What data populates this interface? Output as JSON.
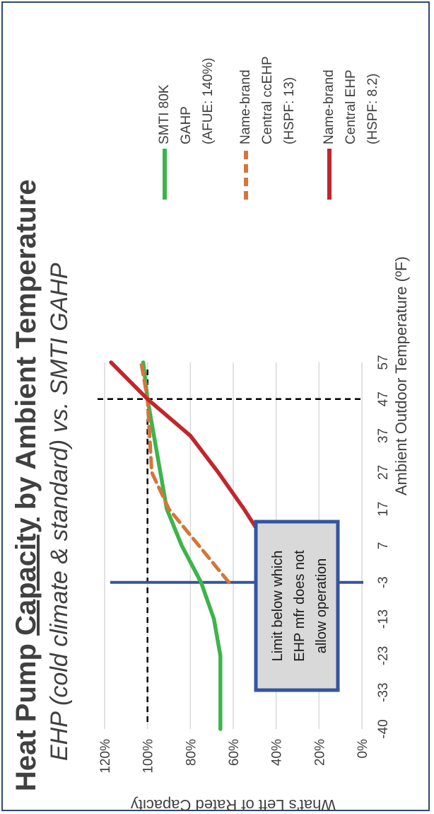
{
  "chart_data": {
    "type": "line",
    "title": "Heat Pump Capacity by Ambient Temperature",
    "title_parts": [
      "Heat Pump ",
      "Capacity",
      " by Ambient Temperature"
    ],
    "subtitle": "EHP (cold climate & standard) vs. SMTI GAHP",
    "xlabel": "Ambient Outdoor Temperature (ºF)",
    "ylabel": "What's Left of Rated Capacity",
    "x_ticks": [
      -40,
      -33,
      -23,
      -13,
      -3,
      7,
      17,
      27,
      37,
      47,
      57
    ],
    "y_ticks": [
      "0%",
      "20%",
      "40%",
      "60%",
      "80%",
      "100%",
      "120%"
    ],
    "ylim": [
      0,
      120
    ],
    "grid": "horizontal",
    "legend_position": "right",
    "series": [
      {
        "name": "SMTI 80K GAHP (AFUE: 140%)",
        "legend_lines": [
          "SMTI 80K",
          "GAHP",
          "(AFUE: 140%)"
        ],
        "color": "#3cb54a",
        "dash": "solid",
        "points": [
          [
            -40,
            66
          ],
          [
            -23,
            66
          ],
          [
            -13,
            69
          ],
          [
            -3,
            75
          ],
          [
            7,
            84
          ],
          [
            17,
            91
          ],
          [
            27,
            94
          ],
          [
            37,
            97
          ],
          [
            47,
            100
          ],
          [
            57,
            102
          ]
        ]
      },
      {
        "name": "Name-brand Central ccEHP (HSPF: 13)",
        "legend_lines": [
          "Name-brand",
          "Central ccEHP",
          "(HSPF: 13)"
        ],
        "color": "#d4763a",
        "dash": "dashed",
        "points": [
          [
            -3,
            62
          ],
          [
            7,
            76
          ],
          [
            17,
            90
          ],
          [
            27,
            98
          ],
          [
            37,
            99
          ],
          [
            47,
            100
          ],
          [
            57,
            103
          ]
        ]
      },
      {
        "name": "Name-brand Central EHP (HSPF: 8.2)",
        "legend_lines": [
          "Name-brand",
          "Central EHP",
          "(HSPF: 8.2)"
        ],
        "color": "#c0272d",
        "dash": "solid",
        "points": [
          [
            -3,
            33
          ],
          [
            7,
            44
          ],
          [
            17,
            55
          ],
          [
            27,
            67
          ],
          [
            37,
            80
          ],
          [
            47,
            100
          ],
          [
            57,
            117
          ]
        ]
      }
    ],
    "reference_lines": [
      {
        "type": "horizontal",
        "y": 100,
        "style": "dashed",
        "color": "#000000"
      },
      {
        "type": "vertical",
        "x": 47,
        "style": "dashed",
        "color": "#000000"
      },
      {
        "type": "vertical",
        "x": -3,
        "style": "solid",
        "color": "#3454a0"
      }
    ],
    "annotation": {
      "lines": [
        "Limit below which",
        "EHP mfr does not",
        "allow operation"
      ],
      "box_fill": "#d9d9d9",
      "border_color": "#3454a0"
    }
  }
}
